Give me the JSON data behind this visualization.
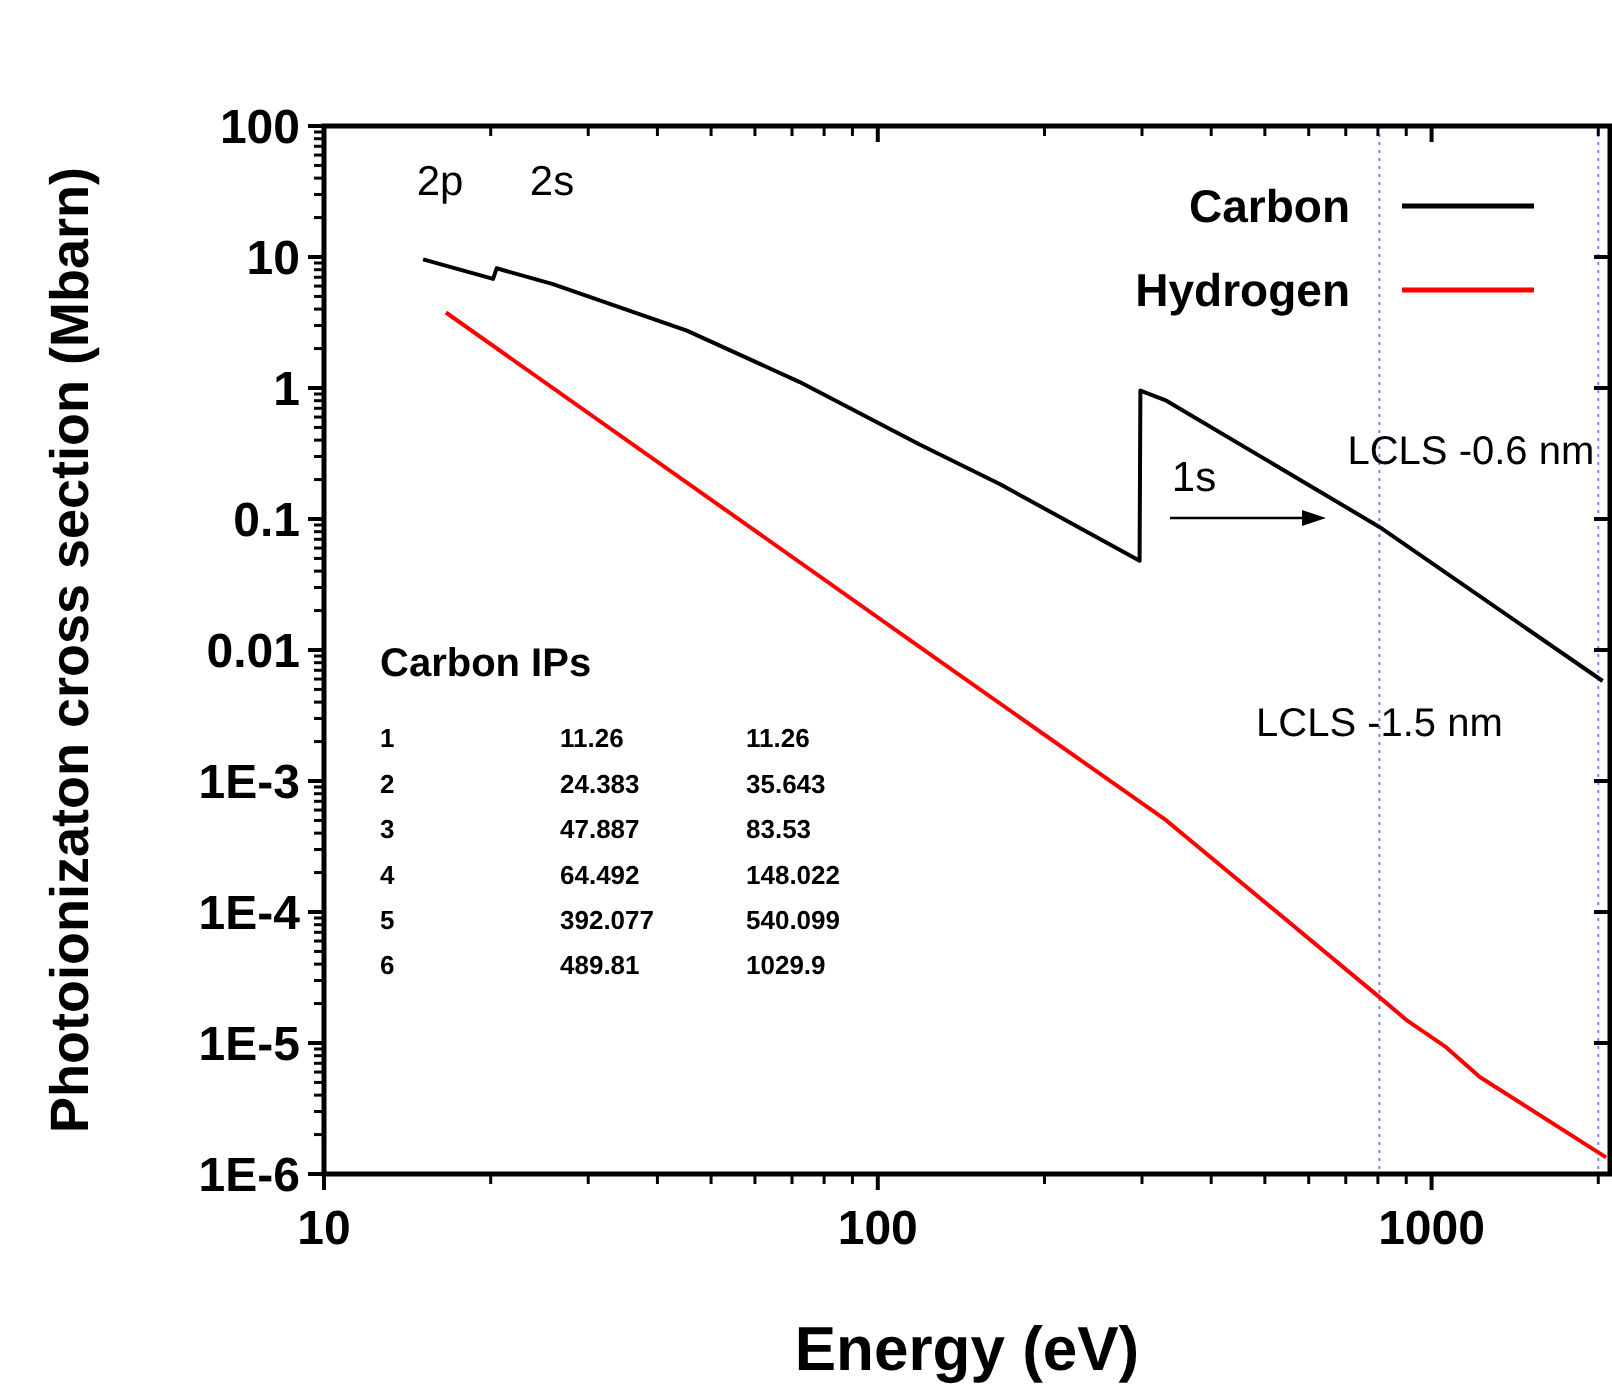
{
  "chart_data": {
    "type": "line",
    "xlabel": "Energy (eV)",
    "ylabel": "Photoionizaton cross section (Mbarn)",
    "log": "xy",
    "grid": false,
    "legend": "top right",
    "marker": "none",
    "line_style": "solid",
    "xlim": [
      10,
      2100
    ],
    "xticks": [
      10,
      100,
      1000
    ],
    "ylim": [
      1e-06,
      100
    ],
    "yticks": [
      {
        "value": 1e-06,
        "label": "1E-6"
      },
      {
        "value": 1e-05,
        "label": "1E-5"
      },
      {
        "value": 0.0001,
        "label": "1E-4"
      },
      {
        "value": 0.001,
        "label": "1E-3"
      },
      0.01,
      0.1,
      1,
      10,
      100
    ],
    "series": [
      {
        "name": "Carbon",
        "color": "#000000",
        "x": [
          15.1,
          20.2,
          20.5,
          25.9,
          45.2,
          72.3,
          119,
          166,
          297,
          298,
          332,
          805,
          2037
        ],
        "values": [
          9.6,
          6.8,
          8.2,
          6.2,
          2.74,
          1.11,
          0.37,
          0.185,
          0.048,
          0.955,
          0.8,
          0.087,
          0.0058
        ]
      },
      {
        "name": "Hydrogen",
        "color": "#ff0000",
        "x": [
          16.6,
          129,
          332,
          805,
          904,
          1062,
          1222,
          2066
        ],
        "values": [
          3.77,
          0.0083,
          0.0005,
          2.24e-05,
          1.48e-05,
          9.3e-06,
          5.5e-06,
          1.34e-06
        ]
      }
    ],
    "ref_lines": [
      {
        "axis": "x",
        "value": 805,
        "label": "LCLS -1.5 nm",
        "color": "#8080ff",
        "line_style": "dotted"
      },
      {
        "axis": "x",
        "value": 2000,
        "label": "LCLS -0.6 nm",
        "color": "#8080ff",
        "line_style": "dotted"
      }
    ],
    "annotations": [
      "2p",
      "2s",
      "1s",
      "Carbon IPs",
      "1\t11.26\t11.26",
      "2\t24.383\t35.643",
      "3\t47.887\t83.53",
      "4\t64.492\t148.022",
      "5\t392.077\t540.099",
      "6\t489.81\t1029.9"
    ]
  }
}
